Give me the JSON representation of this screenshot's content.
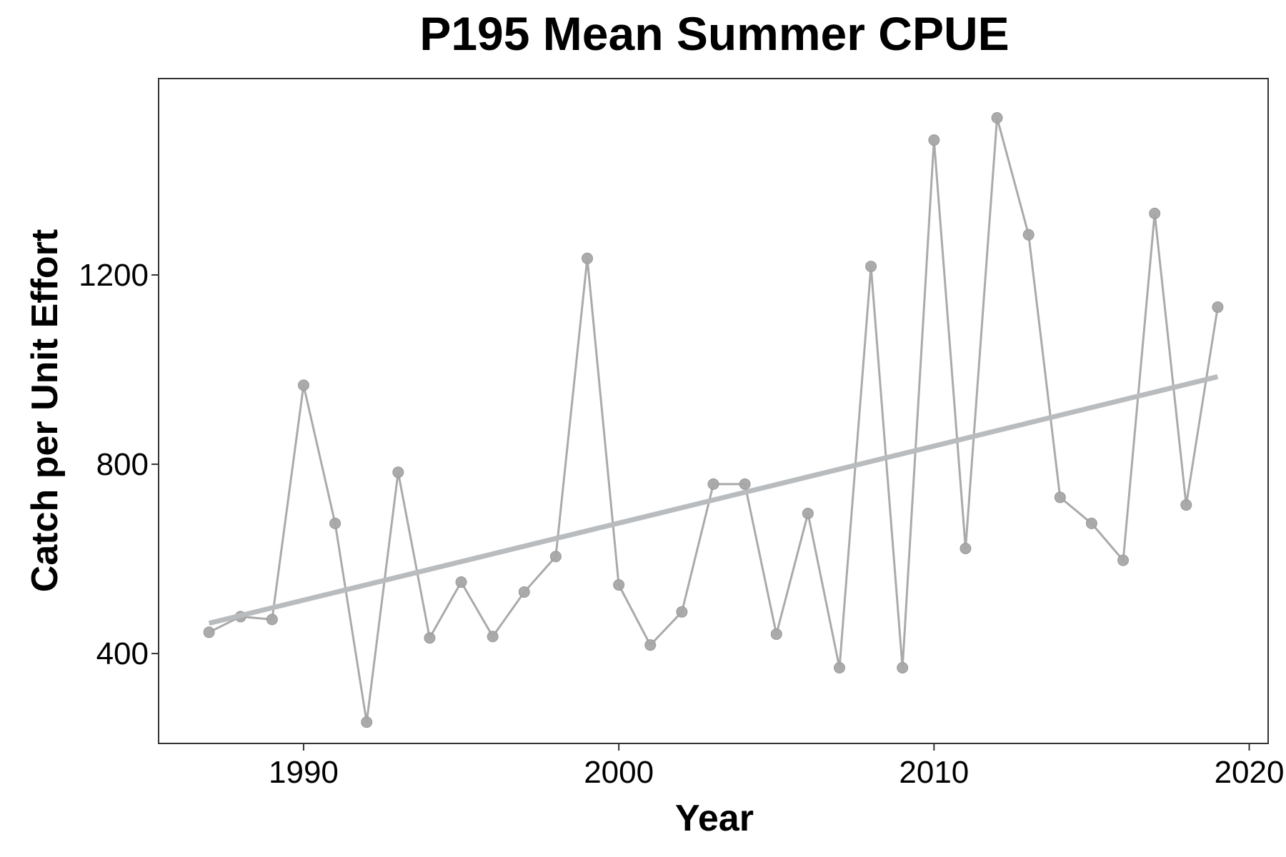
{
  "chart_data": {
    "type": "line",
    "title": "P195 Mean Summer CPUE",
    "xlabel": "Year",
    "ylabel": "Catch per Unit Effort",
    "xlim": [
      1985.4,
      2020.6
    ],
    "ylim": [
      210,
      1615
    ],
    "x_ticks": [
      1990,
      2000,
      2010,
      2020
    ],
    "y_ticks": [
      400,
      800,
      1200
    ],
    "grid": false,
    "legend": "none",
    "series": [
      {
        "x": [
          1987,
          1988,
          1989,
          1990,
          1991,
          1992,
          1993,
          1994,
          1995,
          1996,
          1997,
          1998,
          1999,
          2000,
          2001,
          2002,
          2003,
          2004,
          2005,
          2006,
          2007,
          2008,
          2009,
          2010,
          2011,
          2012,
          2013,
          2014,
          2015,
          2016,
          2017,
          2018,
          2019
        ],
        "y": [
          445,
          478,
          472,
          967,
          675,
          255,
          783,
          433,
          551,
          436,
          530,
          605,
          1235,
          545,
          418,
          488,
          758,
          758,
          441,
          696,
          370,
          1218,
          370,
          1485,
          622,
          1532,
          1285,
          730,
          675,
          597,
          1330,
          714,
          1132
        ],
        "color": "#aaaaaa"
      }
    ],
    "trend_line": {
      "x": [
        1987,
        2019
      ],
      "y": [
        464,
        985
      ],
      "color": "#b9bcbf"
    }
  }
}
